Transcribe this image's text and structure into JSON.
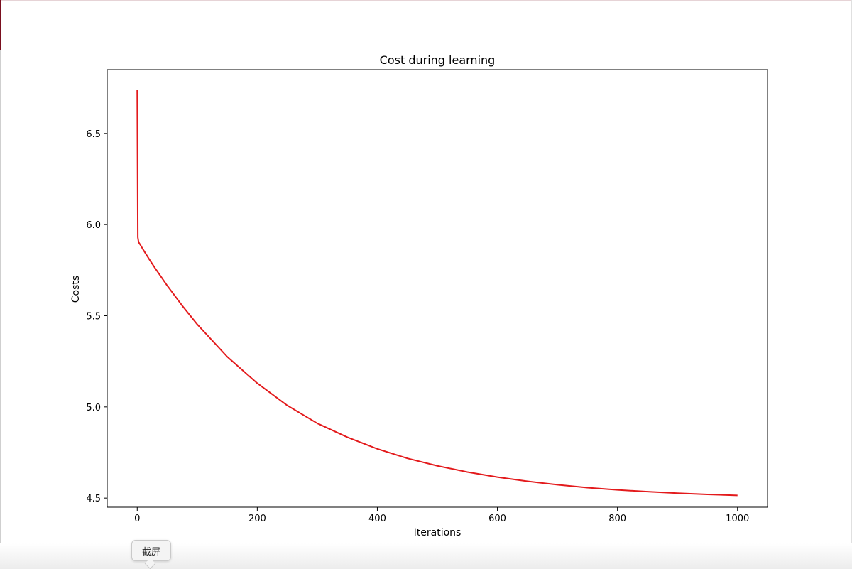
{
  "chart_data": {
    "type": "line",
    "title": "Cost during learning",
    "xlabel": "Iterations",
    "ylabel": "Costs",
    "xlim": [
      -50,
      1050
    ],
    "ylim": [
      4.45,
      6.85
    ],
    "xticks": [
      0,
      200,
      400,
      600,
      800,
      1000
    ],
    "xtick_labels": [
      "0",
      "200",
      "400",
      "600",
      "800",
      "1000"
    ],
    "yticks": [
      4.5,
      5.0,
      5.5,
      6.0,
      6.5
    ],
    "ytick_labels": [
      "4.5",
      "5.0",
      "5.5",
      "6.0",
      "6.5"
    ],
    "grid": false,
    "series": [
      {
        "color": "#e31a1c",
        "x": [
          0,
          1,
          2,
          3,
          5,
          10,
          20,
          30,
          50,
          75,
          100,
          150,
          200,
          250,
          300,
          350,
          400,
          450,
          500,
          550,
          600,
          650,
          700,
          750,
          800,
          850,
          900,
          950,
          1000
        ],
        "y": [
          6.74,
          5.93,
          5.91,
          5.9,
          5.89,
          5.862,
          5.81,
          5.76,
          5.665,
          5.555,
          5.453,
          5.275,
          5.13,
          5.008,
          4.91,
          4.834,
          4.77,
          4.718,
          4.677,
          4.643,
          4.615,
          4.592,
          4.573,
          4.557,
          4.545,
          4.535,
          4.527,
          4.52,
          4.515
        ]
      }
    ]
  },
  "tooltip": {
    "label": "截屏"
  }
}
